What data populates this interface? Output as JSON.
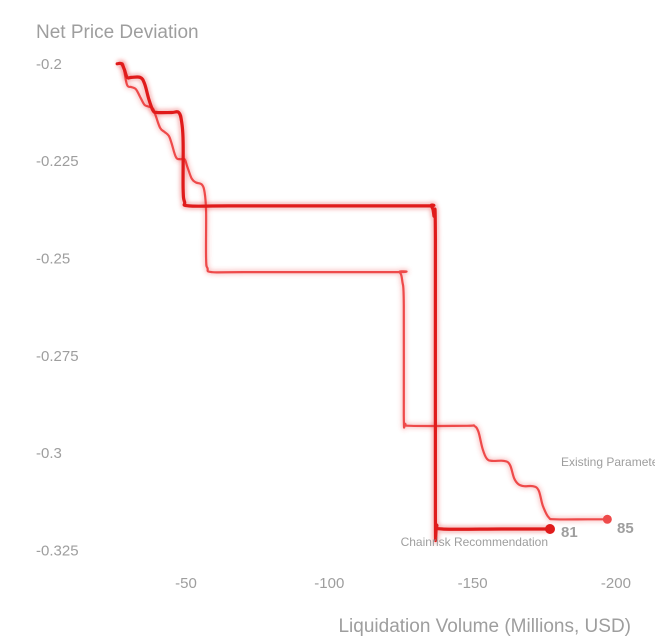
{
  "chart_data": {
    "type": "line",
    "title": "",
    "ylabel": "Net Price Deviation",
    "xlabel": "Liquidation Volume (Millions, USD)",
    "xlim": [
      -20,
      -207
    ],
    "ylim": [
      -0.198,
      -0.329
    ],
    "x_ticks": [
      {
        "value": -50,
        "label": "-50"
      },
      {
        "value": -100,
        "label": "-100"
      },
      {
        "value": -150,
        "label": "-150"
      },
      {
        "value": -200,
        "label": "-200"
      }
    ],
    "y_ticks": [
      {
        "value": -0.2,
        "label": "-0.2"
      },
      {
        "value": -0.225,
        "label": "-0.225"
      },
      {
        "value": -0.25,
        "label": "-0.25"
      },
      {
        "value": -0.275,
        "label": "-0.275"
      },
      {
        "value": -0.3,
        "label": "-0.3"
      },
      {
        "value": -0.325,
        "label": "-0.325"
      }
    ],
    "grid": false,
    "colors": {
      "recommendation": "#e01b1b",
      "existing": "#ee4a4a"
    },
    "series": [
      {
        "key": "recommendation",
        "name": "Chainrisk Recommendation",
        "end_value": "81",
        "points": [
          [
            -26,
            -0.2
          ],
          [
            -27.5,
            -0.2
          ],
          [
            -28.5,
            -0.2015
          ],
          [
            -29.5,
            -0.2035
          ],
          [
            -31,
            -0.2035
          ],
          [
            -34,
            -0.2035
          ],
          [
            -35.5,
            -0.205
          ],
          [
            -37,
            -0.209
          ],
          [
            -38.5,
            -0.212
          ],
          [
            -40,
            -0.2125
          ],
          [
            -45,
            -0.2125
          ],
          [
            -47.5,
            -0.2125
          ],
          [
            -48.5,
            -0.215
          ],
          [
            -49,
            -0.22
          ],
          [
            -49,
            -0.232
          ],
          [
            -49.5,
            -0.2355
          ],
          [
            -51,
            -0.2365
          ],
          [
            -65,
            -0.2365
          ],
          [
            -100,
            -0.2365
          ],
          [
            -133,
            -0.2365
          ],
          [
            -135.5,
            -0.2365
          ],
          [
            -136.5,
            -0.239
          ],
          [
            -137,
            -0.245
          ],
          [
            -137,
            -0.316
          ],
          [
            -137.5,
            -0.3185
          ],
          [
            -139.5,
            -0.3195
          ],
          [
            -160,
            -0.3195
          ],
          [
            -177,
            -0.3195
          ]
        ]
      },
      {
        "key": "existing",
        "name": "Existing Parameter",
        "end_value": "85",
        "points": [
          [
            -27,
            -0.2
          ],
          [
            -28,
            -0.2
          ],
          [
            -28.5,
            -0.202
          ],
          [
            -29.5,
            -0.2055
          ],
          [
            -31,
            -0.206
          ],
          [
            -32.5,
            -0.2065
          ],
          [
            -34,
            -0.2085
          ],
          [
            -35.5,
            -0.2105
          ],
          [
            -37,
            -0.211
          ],
          [
            -38.5,
            -0.2115
          ],
          [
            -39.5,
            -0.2135
          ],
          [
            -41,
            -0.2165
          ],
          [
            -42.5,
            -0.2175
          ],
          [
            -44,
            -0.2185
          ],
          [
            -45,
            -0.2205
          ],
          [
            -46.5,
            -0.224
          ],
          [
            -48,
            -0.2245
          ],
          [
            -49.5,
            -0.2245
          ],
          [
            -50.5,
            -0.2265
          ],
          [
            -52,
            -0.2295
          ],
          [
            -53.5,
            -0.2305
          ],
          [
            -55.5,
            -0.231
          ],
          [
            -56.5,
            -0.233
          ],
          [
            -57,
            -0.238
          ],
          [
            -57,
            -0.25
          ],
          [
            -57.5,
            -0.2525
          ],
          [
            -59,
            -0.2535
          ],
          [
            -70,
            -0.2535
          ],
          [
            -122,
            -0.2535
          ],
          [
            -124.5,
            -0.2535
          ],
          [
            -125.5,
            -0.256
          ],
          [
            -126,
            -0.262
          ],
          [
            -126,
            -0.2905
          ],
          [
            -126.5,
            -0.2925
          ],
          [
            -128.5,
            -0.293
          ],
          [
            -148,
            -0.293
          ],
          [
            -150.5,
            -0.293
          ],
          [
            -152,
            -0.2945
          ],
          [
            -153.5,
            -0.299
          ],
          [
            -155,
            -0.3015
          ],
          [
            -157,
            -0.302
          ],
          [
            -161,
            -0.302
          ],
          [
            -163,
            -0.303
          ],
          [
            -164.5,
            -0.3065
          ],
          [
            -166,
            -0.308
          ],
          [
            -168,
            -0.3085
          ],
          [
            -171,
            -0.3085
          ],
          [
            -173,
            -0.3095
          ],
          [
            -174.5,
            -0.3135
          ],
          [
            -176.5,
            -0.3165
          ],
          [
            -179,
            -0.317
          ],
          [
            -190,
            -0.317
          ],
          [
            -197,
            -0.317
          ]
        ]
      }
    ]
  }
}
